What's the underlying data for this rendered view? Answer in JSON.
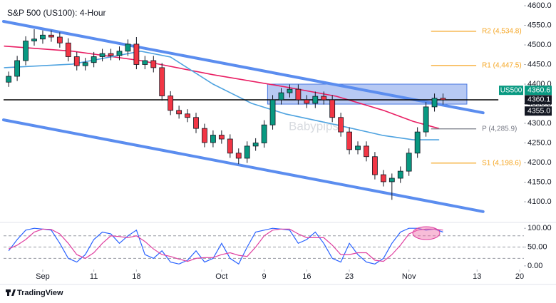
{
  "chart_data": {
    "type": "candlestick",
    "title": "S&P 500 (US100): 4-Hour",
    "watermark": "Babypips",
    "brand": "TradingView",
    "up_color": "#089981",
    "down_color": "#f23645",
    "x": [
      -4,
      -3,
      -2,
      -1,
      0,
      1,
      2,
      3,
      4,
      5,
      6,
      7,
      8,
      9,
      10,
      11,
      12,
      13,
      14,
      15,
      16,
      17,
      18,
      19,
      20,
      21,
      22,
      23,
      24,
      25,
      26,
      27,
      28,
      29,
      30,
      31,
      32,
      33,
      34,
      35,
      36,
      37,
      38,
      39,
      40,
      41,
      42,
      43,
      44,
      45,
      46,
      47
    ],
    "open": [
      4405,
      4420,
      4460,
      4510,
      4515,
      4525,
      4520,
      4505,
      4470,
      4447,
      4455,
      4470,
      4478,
      4473,
      4484,
      4502,
      4450,
      4460,
      4442,
      4370,
      4333,
      4324,
      4315,
      4287,
      4251,
      4270,
      4260,
      4224,
      4211,
      4242,
      4250,
      4296,
      4360,
      4378,
      4387,
      4360,
      4351,
      4369,
      4360,
      4315,
      4278,
      4233,
      4242,
      4215,
      4169,
      4151,
      4160,
      4178,
      4224,
      4278,
      4342,
      4364
    ],
    "high": [
      4432,
      4472,
      4522,
      4540,
      4537,
      4537,
      4532,
      4517,
      4482,
      4467,
      4482,
      4490,
      4490,
      4496,
      4514,
      4520,
      4472,
      4472,
      4454,
      4382,
      4345,
      4336,
      4327,
      4299,
      4282,
      4282,
      4272,
      4236,
      4254,
      4262,
      4308,
      4372,
      4390,
      4399,
      4399,
      4372,
      4381,
      4381,
      4372,
      4327,
      4290,
      4254,
      4254,
      4227,
      4181,
      4172,
      4190,
      4236,
      4290,
      4354,
      4376,
      4376
    ],
    "low": [
      4393,
      4408,
      4448,
      4498,
      4503,
      4508,
      4493,
      4458,
      4435,
      4435,
      4443,
      4458,
      4461,
      4461,
      4472,
      4438,
      4438,
      4430,
      4358,
      4321,
      4312,
      4303,
      4275,
      4239,
      4239,
      4248,
      4212,
      4196,
      4199,
      4230,
      4238,
      4284,
      4348,
      4366,
      4348,
      4339,
      4339,
      4348,
      4303,
      4266,
      4221,
      4221,
      4203,
      4157,
      4139,
      4105,
      4148,
      4166,
      4212,
      4266,
      4330,
      4348
    ],
    "close": [
      4420,
      4460,
      4510,
      4515,
      4525,
      4520,
      4505,
      4470,
      4447,
      4455,
      4470,
      4478,
      4473,
      4484,
      4502,
      4450,
      4460,
      4442,
      4370,
      4333,
      4324,
      4315,
      4287,
      4251,
      4270,
      4260,
      4224,
      4211,
      4242,
      4250,
      4296,
      4360,
      4378,
      4387,
      4360,
      4351,
      4369,
      4360,
      4315,
      4278,
      4233,
      4242,
      4215,
      4169,
      4151,
      4160,
      4178,
      4224,
      4278,
      4342,
      4364,
      4360
    ],
    "xlim": [
      -4.6,
      56.5
    ],
    "ylim": [
      4070,
      4610
    ],
    "xticks": [
      {
        "value": 0,
        "label": "Sep"
      },
      {
        "value": 6,
        "label": "11"
      },
      {
        "value": 11,
        "label": "18"
      },
      {
        "value": 21,
        "label": "Oct"
      },
      {
        "value": 26,
        "label": "9"
      },
      {
        "value": 31,
        "label": "16"
      },
      {
        "value": 36,
        "label": "23"
      },
      {
        "value": 43,
        "label": "Nov"
      },
      {
        "value": 51,
        "label": "13"
      },
      {
        "value": 56,
        "label": "20"
      }
    ],
    "yticks": [
      {
        "value": 4600,
        "label": "4600.0"
      },
      {
        "value": 4550,
        "label": "4550.0"
      },
      {
        "value": 4500,
        "label": "4500.0"
      },
      {
        "value": 4450,
        "label": "4450.0"
      },
      {
        "value": 4400,
        "label": "4400.0"
      },
      {
        "value": 4350,
        "label": "4350.0"
      },
      {
        "value": 4300,
        "label": "4300.0"
      },
      {
        "value": 4250,
        "label": "4250.0"
      },
      {
        "value": 4200,
        "label": "4200.0"
      },
      {
        "value": 4150,
        "label": "4150.0"
      },
      {
        "value": 4100,
        "label": "4100.0"
      }
    ],
    "moving_averages": [
      {
        "color": "#e91e63",
        "x": [
          -4.5,
          3.5,
          11.5,
          20,
          28.5,
          34.5,
          40,
          43.5,
          46.5
        ],
        "values": [
          4497,
          4484,
          4460,
          4424,
          4393,
          4369,
          4333,
          4305,
          4287
        ]
      },
      {
        "color": "#4fa3e0",
        "x": [
          -4.5,
          3.5,
          11.5,
          15,
          20,
          24.5,
          28.5,
          34.5,
          40,
          43.5,
          46.5
        ],
        "values": [
          4442,
          4451,
          4484,
          4469,
          4400,
          4351,
          4324,
          4296,
          4269,
          4258,
          4258
        ]
      }
    ],
    "trendlines": [
      {
        "color": "#5b8def",
        "x": [
          -4.6,
          51.7
        ],
        "values": [
          4560,
          4327
        ]
      },
      {
        "color": "#5b8def",
        "x": [
          -4.6,
          51.7
        ],
        "values": [
          4309,
          4075
        ]
      }
    ],
    "hline": {
      "value": 4360.1,
      "color": "#000000",
      "x": [
        -4.6,
        53.5
      ]
    },
    "zone": {
      "x": [
        26.4,
        49.8
      ],
      "values": [
        4349,
        4400
      ],
      "color": "#4a78e0"
    },
    "pivots": [
      {
        "label": "R2 (4,534.8)",
        "value": 4534.8,
        "color": "#f5a623"
      },
      {
        "label": "R1 (4,447.5)",
        "value": 4447.5,
        "color": "#f5a623"
      },
      {
        "label": "P (4,285.9)",
        "value": 4285.9,
        "color": "#787b86"
      },
      {
        "label": "S1 (4,198.6)",
        "value": 4198.6,
        "color": "#f5a623"
      }
    ],
    "pivot_x": [
      45.6,
      50.9
    ],
    "price_tags": [
      {
        "name": "US500",
        "value": 4360.6,
        "label": "4360.6",
        "color": "#089981"
      },
      {
        "value": 4360.1,
        "label": "4360.1",
        "color": "#131722"
      },
      {
        "value": 4355,
        "label": "4355.0",
        "color": "#131722"
      }
    ],
    "oscillator": {
      "ylim": [
        -4,
        108
      ],
      "yticks": [
        {
          "value": 100,
          "label": "100.00"
        },
        {
          "value": 50,
          "label": "50.00"
        },
        {
          "value": 0,
          "label": "0.00"
        }
      ],
      "levels": [
        80,
        50,
        20
      ],
      "series": [
        {
          "color": "#2962ff",
          "values": [
            40,
            70,
            95,
            100,
            98,
            95,
            60,
            20,
            10,
            30,
            70,
            90,
            85,
            60,
            80,
            95,
            30,
            20,
            40,
            10,
            5,
            15,
            40,
            10,
            20,
            60,
            20,
            5,
            50,
            90,
            95,
            100,
            98,
            95,
            60,
            70,
            90,
            60,
            20,
            10,
            60,
            30,
            10,
            5,
            20,
            60,
            90,
            100,
            100,
            95,
            98,
            90
          ]
        },
        {
          "color": "#e040a0",
          "values": [
            45,
            55,
            70,
            90,
            98,
            97,
            85,
            60,
            30,
            20,
            35,
            60,
            80,
            78,
            75,
            80,
            65,
            45,
            30,
            25,
            18,
            12,
            20,
            22,
            22,
            30,
            35,
            28,
            25,
            50,
            80,
            95,
            98,
            98,
            85,
            75,
            75,
            75,
            55,
            30,
            30,
            35,
            35,
            15,
            12,
            30,
            55,
            85,
            95,
            98,
            98,
            95
          ]
        }
      ]
    }
  }
}
